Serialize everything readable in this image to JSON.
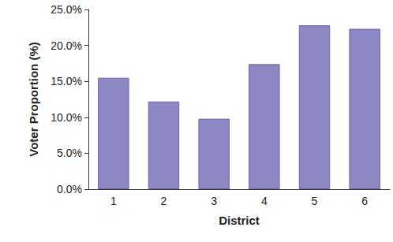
{
  "chart_data": {
    "type": "bar",
    "x_label": "District",
    "y_label": "Voter Proportion (%)",
    "categories": [
      "1",
      "2",
      "3",
      "4",
      "5",
      "6"
    ],
    "values": [
      15.5,
      12.2,
      9.8,
      17.4,
      22.8,
      22.3
    ],
    "color": "#8b88c4",
    "ylim": [
      0,
      25
    ],
    "yticks": [
      {
        "value": 0,
        "label": "0.0%"
      },
      {
        "value": 5,
        "label": "5.0%"
      },
      {
        "value": 10,
        "label": "10.0%"
      },
      {
        "value": 15,
        "label": "15.0%"
      },
      {
        "value": 20,
        "label": "20.0%"
      },
      {
        "value": 25,
        "label": "25.0%"
      }
    ],
    "grid": false
  }
}
